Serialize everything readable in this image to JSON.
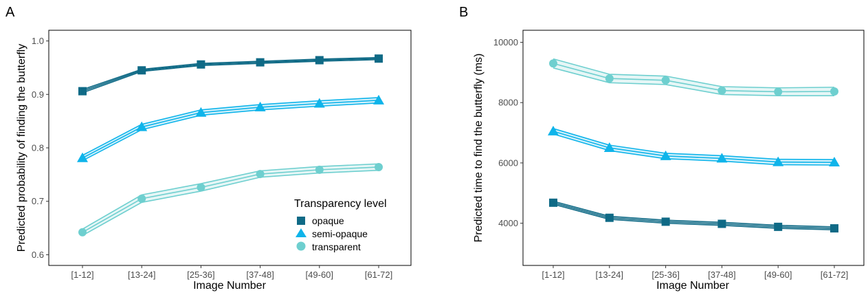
{
  "chart_data": [
    {
      "panel": "A",
      "type": "line",
      "xlabel": "Image Number",
      "ylabel": "Predicted probability of finding the butterfly",
      "categories": [
        "[1-12]",
        "[13-24]",
        "[25-36]",
        "[37-48]",
        "[49-60]",
        "[61-72]"
      ],
      "ylim": [
        0.58,
        1.02
      ],
      "yticks": [
        0.6,
        0.7,
        0.8,
        0.9,
        1.0
      ],
      "ytick_labels": [
        "0.6",
        "0.7",
        "0.8",
        "0.9",
        "1.0"
      ],
      "grid": false,
      "legend": {
        "title": "Transparency level",
        "position": "bottom-right"
      },
      "series": [
        {
          "name": "opaque",
          "marker": "square",
          "color": "#0f6a86",
          "band_color": "#0f6a86",
          "values": [
            0.906,
            0.945,
            0.956,
            0.96,
            0.964,
            0.967
          ],
          "lower": [
            0.903,
            0.943,
            0.954,
            0.958,
            0.962,
            0.965
          ],
          "upper": [
            0.909,
            0.947,
            0.958,
            0.962,
            0.966,
            0.969
          ]
        },
        {
          "name": "semi-opaque",
          "marker": "triangle",
          "color": "#0fb4ea",
          "band_color": "#0fb4ea",
          "values": [
            0.781,
            0.839,
            0.866,
            0.876,
            0.883,
            0.889
          ],
          "lower": [
            0.776,
            0.834,
            0.861,
            0.871,
            0.878,
            0.884
          ],
          "upper": [
            0.786,
            0.844,
            0.871,
            0.881,
            0.888,
            0.894
          ]
        },
        {
          "name": "transparent",
          "marker": "circle",
          "color": "#6ecfcf",
          "band_color": "#6ecfcf",
          "values": [
            0.642,
            0.705,
            0.726,
            0.751,
            0.759,
            0.764
          ],
          "lower": [
            0.636,
            0.698,
            0.719,
            0.745,
            0.753,
            0.758
          ],
          "upper": [
            0.648,
            0.712,
            0.733,
            0.757,
            0.765,
            0.77
          ]
        }
      ]
    },
    {
      "panel": "B",
      "type": "line",
      "xlabel": "Image Number",
      "ylabel": "Predicted time to find the butterfly (ms)",
      "categories": [
        "[1-12]",
        "[13-24]",
        "[25-36]",
        "[37-48]",
        "[49-60]",
        "[61-72]"
      ],
      "ylim": [
        2600,
        10400
      ],
      "yticks": [
        4000,
        6000,
        8000,
        10000
      ],
      "ytick_labels": [
        "4000",
        "6000",
        "8000",
        "10000"
      ],
      "grid": false,
      "series": [
        {
          "name": "transparent",
          "marker": "circle",
          "color": "#6ecfcf",
          "band_color": "#6ecfcf",
          "values": [
            9300,
            8800,
            8740,
            8400,
            8360,
            8370
          ],
          "lower": [
            9150,
            8660,
            8600,
            8270,
            8230,
            8230
          ],
          "upper": [
            9450,
            8940,
            8880,
            8530,
            8490,
            8510
          ]
        },
        {
          "name": "semi-opaque",
          "marker": "triangle",
          "color": "#0fb4ea",
          "band_color": "#0fb4ea",
          "values": [
            7050,
            6500,
            6230,
            6150,
            6030,
            6020
          ],
          "lower": [
            6960,
            6410,
            6140,
            6060,
            5940,
            5930
          ],
          "upper": [
            7140,
            6590,
            6320,
            6240,
            6120,
            6110
          ]
        },
        {
          "name": "opaque",
          "marker": "square",
          "color": "#0f6a86",
          "band_color": "#0f6a86",
          "values": [
            4680,
            4180,
            4050,
            3980,
            3880,
            3830
          ],
          "lower": [
            4630,
            4130,
            4000,
            3930,
            3830,
            3780
          ],
          "upper": [
            4730,
            4230,
            4100,
            4030,
            3930,
            3880
          ]
        }
      ]
    }
  ]
}
